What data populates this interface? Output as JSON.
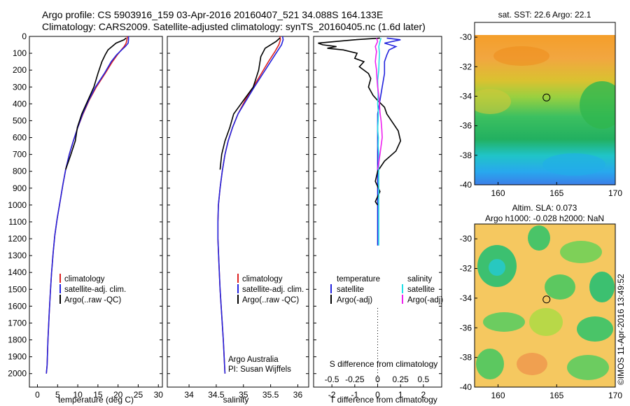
{
  "header": {
    "line1": "Argo profile: CS 5903916_159 03-Apr-2016 20160407_521 34.088S 164.133E",
    "line2": "Climatology: CARS2009. Satellite-adjusted climatology: synTS_20160405.nc (1.6d later)"
  },
  "colors": {
    "red": "#dd2222",
    "blue": "#2222dd",
    "black": "#000000",
    "cyan": "#22e0e8",
    "magenta": "#ee22ee"
  },
  "chart_data": [
    {
      "type": "line",
      "xlabel": "temperature (deg C)",
      "xlim": [
        -2,
        31
      ],
      "ylim": [
        0,
        2080
      ],
      "y_reversed": true,
      "xticks": [
        0,
        5,
        10,
        15,
        20,
        25,
        30
      ],
      "yticks": [
        0,
        100,
        200,
        300,
        400,
        500,
        600,
        700,
        800,
        900,
        1000,
        1100,
        1200,
        1300,
        1400,
        1500,
        1600,
        1700,
        1800,
        1900,
        2000
      ],
      "legend": [
        "climatology",
        "satellite-adj. clim.",
        "Argo(..raw -QC)"
      ],
      "series": [
        {
          "name": "climatology",
          "color": "red",
          "points": [
            [
              22.3,
              0
            ],
            [
              22.2,
              20
            ],
            [
              22.0,
              40
            ],
            [
              21.5,
              60
            ],
            [
              20.8,
              80
            ],
            [
              19.8,
              110
            ],
            [
              18.6,
              150
            ],
            [
              16.8,
              220
            ],
            [
              14.6,
              300
            ],
            [
              12.8,
              380
            ],
            [
              11.3,
              460
            ],
            [
              10.0,
              540
            ],
            [
              8.9,
              620
            ],
            [
              7.9,
              700
            ],
            [
              7.0,
              790
            ],
            [
              6.3,
              880
            ],
            [
              5.6,
              980
            ],
            [
              4.9,
              1080
            ],
            [
              4.3,
              1180
            ],
            [
              3.9,
              1280
            ],
            [
              3.5,
              1400
            ],
            [
              3.2,
              1520
            ],
            [
              2.9,
              1650
            ],
            [
              2.6,
              1800
            ],
            [
              2.4,
              1950
            ],
            [
              2.2,
              2000
            ]
          ]
        },
        {
          "name": "satellite-adj. clim.",
          "color": "blue",
          "points": [
            [
              22.6,
              0
            ],
            [
              22.6,
              20
            ],
            [
              22.5,
              40
            ],
            [
              21.8,
              60
            ],
            [
              20.9,
              80
            ],
            [
              19.6,
              110
            ],
            [
              18.3,
              150
            ],
            [
              16.6,
              220
            ],
            [
              14.4,
              300
            ],
            [
              12.7,
              380
            ],
            [
              11.2,
              460
            ],
            [
              10.0,
              540
            ],
            [
              8.9,
              620
            ],
            [
              7.9,
              700
            ],
            [
              7.0,
              790
            ],
            [
              6.3,
              880
            ],
            [
              5.6,
              980
            ],
            [
              4.9,
              1080
            ],
            [
              4.3,
              1180
            ],
            [
              3.9,
              1280
            ],
            [
              3.5,
              1400
            ],
            [
              3.2,
              1520
            ],
            [
              2.9,
              1650
            ],
            [
              2.6,
              1800
            ],
            [
              2.4,
              1950
            ],
            [
              2.2,
              2000
            ]
          ]
        },
        {
          "name": "Argo(..raw -QC)",
          "color": "black",
          "points": [
            [
              22.0,
              10
            ],
            [
              21.5,
              20
            ],
            [
              19.5,
              40
            ],
            [
              18.5,
              60
            ],
            [
              17.5,
              80
            ],
            [
              16.8,
              110
            ],
            [
              16.0,
              150
            ],
            [
              15.0,
              220
            ],
            [
              14.0,
              300
            ],
            [
              12.5,
              380
            ],
            [
              11.0,
              460
            ],
            [
              9.9,
              540
            ],
            [
              9.4,
              620
            ],
            [
              8.3,
              700
            ],
            [
              7.0,
              790
            ]
          ]
        }
      ]
    },
    {
      "type": "line",
      "xlabel": "salinity",
      "xlim": [
        33.6,
        36.2
      ],
      "ylim": [
        0,
        2080
      ],
      "y_reversed": true,
      "xticks": [
        34,
        34.5,
        35,
        35.5,
        36
      ],
      "legend": [
        "climatology",
        "satellite-adj. clim.",
        "Argo(..raw -QC)"
      ],
      "annotation": [
        "Argo Australia",
        "PI: Susan Wijffels"
      ],
      "series": [
        {
          "name": "climatology",
          "color": "red",
          "points": [
            [
              35.67,
              0
            ],
            [
              35.68,
              20
            ],
            [
              35.65,
              50
            ],
            [
              35.58,
              90
            ],
            [
              35.46,
              150
            ],
            [
              35.33,
              220
            ],
            [
              35.18,
              300
            ],
            [
              35.03,
              380
            ],
            [
              34.9,
              460
            ],
            [
              34.8,
              540
            ],
            [
              34.72,
              620
            ],
            [
              34.66,
              700
            ],
            [
              34.61,
              800
            ],
            [
              34.57,
              900
            ],
            [
              34.54,
              1000
            ],
            [
              34.53,
              1100
            ],
            [
              34.53,
              1200
            ],
            [
              34.55,
              1350
            ],
            [
              34.57,
              1500
            ],
            [
              34.6,
              1650
            ],
            [
              34.63,
              1800
            ],
            [
              34.66,
              2000
            ]
          ]
        },
        {
          "name": "satellite-adj. clim.",
          "color": "blue",
          "points": [
            [
              35.72,
              0
            ],
            [
              35.73,
              20
            ],
            [
              35.7,
              50
            ],
            [
              35.62,
              90
            ],
            [
              35.5,
              150
            ],
            [
              35.36,
              220
            ],
            [
              35.2,
              300
            ],
            [
              35.05,
              380
            ],
            [
              34.9,
              460
            ],
            [
              34.8,
              540
            ],
            [
              34.72,
              620
            ],
            [
              34.66,
              700
            ],
            [
              34.61,
              800
            ],
            [
              34.57,
              900
            ],
            [
              34.54,
              1000
            ],
            [
              34.53,
              1100
            ],
            [
              34.53,
              1200
            ],
            [
              34.55,
              1350
            ],
            [
              34.57,
              1500
            ],
            [
              34.6,
              1650
            ],
            [
              34.63,
              1800
            ],
            [
              34.66,
              2000
            ]
          ]
        },
        {
          "name": "Argo(..raw -QC)",
          "color": "black",
          "points": [
            [
              35.67,
              10
            ],
            [
              35.6,
              30
            ],
            [
              35.4,
              70
            ],
            [
              35.32,
              120
            ],
            [
              35.28,
              200
            ],
            [
              35.18,
              300
            ],
            [
              35.0,
              380
            ],
            [
              34.82,
              460
            ],
            [
              34.75,
              540
            ],
            [
              34.66,
              620
            ],
            [
              34.6,
              700
            ],
            [
              34.57,
              790
            ]
          ]
        }
      ]
    },
    {
      "type": "line",
      "xlabel": "T difference from climatology",
      "xlabel_top": "S difference from climatology",
      "xlim": [
        -2.8,
        2.8
      ],
      "ylim": [
        0,
        2080
      ],
      "y_reversed": true,
      "xticks": [
        -2,
        -1,
        0,
        1,
        2
      ],
      "xticks_top": [
        -0.5,
        -0.25,
        0,
        0.25,
        0.5
      ],
      "legend_title_temperature": "temperature",
      "legend_title_salinity": "salinity",
      "legend": [
        "satellite",
        "Argo(-adj)",
        "satellite",
        "Argo(-adj)"
      ],
      "series": [
        {
          "name": "satellite",
          "color": "blue",
          "points": [
            [
              0.4,
              10
            ],
            [
              1.0,
              20
            ],
            [
              0.3,
              40
            ],
            [
              0.8,
              60
            ],
            [
              0.5,
              80
            ],
            [
              0.4,
              110
            ],
            [
              0.3,
              150
            ],
            [
              0.3,
              220
            ],
            [
              0.2,
              300
            ],
            [
              0.1,
              380
            ],
            [
              0.0,
              460
            ],
            [
              0.0,
              540
            ],
            [
              0.0,
              620
            ],
            [
              0.0,
              700
            ],
            [
              0.0,
              790
            ],
            [
              0.0,
              900
            ],
            [
              0.0,
              1000
            ],
            [
              0.0,
              1100
            ],
            [
              0.0,
              1200
            ],
            [
              0.0,
              1240
            ]
          ]
        },
        {
          "name": "Argo(-adj)",
          "color": "black",
          "points": [
            [
              0.1,
              10
            ],
            [
              -1.0,
              20
            ],
            [
              -2.6,
              40
            ],
            [
              -2.4,
              50
            ],
            [
              -1.8,
              60
            ],
            [
              -2.2,
              70
            ],
            [
              -1.5,
              80
            ],
            [
              -0.9,
              100
            ],
            [
              -1.0,
              130
            ],
            [
              -0.6,
              150
            ],
            [
              -0.8,
              180
            ],
            [
              -0.4,
              220
            ],
            [
              -0.3,
              250
            ],
            [
              -0.4,
              300
            ],
            [
              -0.2,
              350
            ],
            [
              0.0,
              380
            ],
            [
              0.3,
              420
            ],
            [
              0.4,
              460
            ],
            [
              0.6,
              500
            ],
            [
              0.9,
              560
            ],
            [
              1.0,
              620
            ],
            [
              0.8,
              680
            ],
            [
              0.3,
              740
            ],
            [
              0.0,
              800
            ],
            [
              -0.1,
              860
            ],
            [
              0.1,
              920
            ],
            [
              -0.1,
              980
            ],
            [
              0.0,
              1000
            ]
          ]
        },
        {
          "name": "satellite",
          "color": "cyan",
          "points": [
            [
              0.15,
              10
            ],
            [
              0.1,
              30
            ],
            [
              0.05,
              60
            ],
            [
              0.08,
              100
            ],
            [
              0.06,
              150
            ],
            [
              0.05,
              200
            ],
            [
              0.0,
              260
            ],
            [
              0.01,
              300
            ],
            [
              0.02,
              350
            ],
            [
              0.0,
              400
            ],
            [
              0.03,
              450
            ],
            [
              0.02,
              500
            ],
            [
              0.0,
              550
            ],
            [
              0.03,
              600
            ],
            [
              0.02,
              650
            ],
            [
              0.05,
              700
            ],
            [
              0.05,
              800
            ],
            [
              0.05,
              900
            ],
            [
              0.05,
              1000
            ],
            [
              0.05,
              1100
            ],
            [
              0.05,
              1240
            ]
          ]
        },
        {
          "name": "Argo(-adj)",
          "color": "magenta",
          "points": [
            [
              -0.05,
              10
            ],
            [
              0.0,
              30
            ],
            [
              -0.1,
              60
            ],
            [
              -0.05,
              90
            ],
            [
              -0.08,
              120
            ],
            [
              -0.1,
              150
            ],
            [
              -0.05,
              200
            ],
            [
              -0.03,
              250
            ],
            [
              0.0,
              300
            ],
            [
              0.05,
              350
            ],
            [
              0.08,
              400
            ],
            [
              0.1,
              450
            ],
            [
              0.15,
              500
            ],
            [
              0.18,
              550
            ],
            [
              0.2,
              600
            ],
            [
              0.15,
              650
            ],
            [
              0.1,
              700
            ],
            [
              0.05,
              750
            ],
            [
              0.0,
              790
            ]
          ]
        }
      ]
    },
    {
      "type": "heatmap",
      "title": "sat. SST: 22.6 Argo: 22.1",
      "xlim": [
        158,
        170
      ],
      "ylim": [
        -40,
        -29
      ],
      "xticks": [
        160,
        165,
        170
      ],
      "yticks": [
        -30,
        -32,
        -34,
        -36,
        -38,
        -40
      ],
      "marker": {
        "lon": 164.133,
        "lat": -34.088
      }
    },
    {
      "type": "heatmap",
      "title": "Altim. SLA: 0.073",
      "subtitle": "Argo h1000: -0.028 h2000: NaN",
      "xlim": [
        158,
        170
      ],
      "ylim": [
        -40,
        -29
      ],
      "xticks": [
        160,
        165,
        170
      ],
      "yticks": [
        -30,
        -32,
        -34,
        -36,
        -38,
        -40
      ],
      "marker": {
        "lon": 164.133,
        "lat": -34.088
      }
    }
  ],
  "credit": "©IMOS 11-Apr-2016 13:49:52"
}
